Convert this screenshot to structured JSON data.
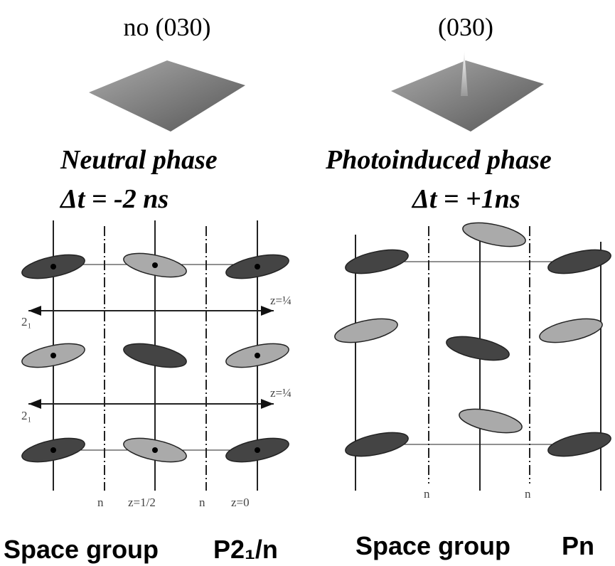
{
  "left": {
    "peak_label": "no (030)",
    "phase": "Neutral phase",
    "delay": "Δt = -2 ns",
    "axis_labels": [
      "z=¼",
      "z=¼"
    ],
    "screw_labels": [
      "2₁",
      "2₁"
    ],
    "bottom_labels": [
      "n",
      "z=1/2",
      "n",
      "z=0"
    ],
    "space_group_label": "Space group",
    "space_group": "P2₁/n"
  },
  "right": {
    "peak_label": "(030)",
    "phase": "Photoinduced phase",
    "delay": "Δt = +1ns",
    "bottom_labels": [
      "n",
      "n"
    ],
    "space_group_label": "Space group",
    "space_group": "Pn"
  }
}
